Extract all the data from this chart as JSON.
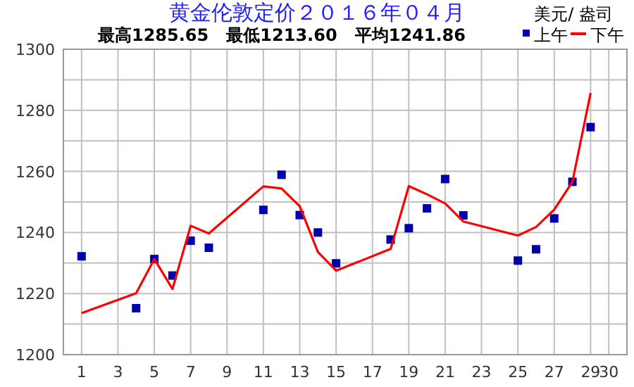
{
  "chart_data": {
    "type": "line",
    "title": "黄金伦敦定价２０１６年０４月",
    "subtitle": "最高1285.65   最低1213.60   平均1241.86",
    "ylabel": "美元/ 盎司",
    "x": [
      1,
      4,
      5,
      6,
      7,
      8,
      11,
      12,
      13,
      14,
      15,
      18,
      19,
      20,
      21,
      22,
      25,
      26,
      27,
      28,
      29
    ],
    "series": [
      {
        "name": "上午",
        "type": "scatter",
        "marker": "square",
        "color": "#0000aa",
        "values": [
          1232.2,
          1215.2,
          1231.3,
          1225.9,
          1237.3,
          1235.0,
          1247.4,
          1258.9,
          1245.7,
          1240.0,
          1229.9,
          1237.7,
          1241.4,
          1247.9,
          1257.5,
          1245.6,
          1230.8,
          1234.5,
          1244.6,
          1256.6,
          1274.5
        ]
      },
      {
        "name": "下午",
        "color": "#ff0000",
        "values": [
          1213.6,
          1220.1,
          1231.3,
          1221.5,
          1242.2,
          1239.7,
          1255.1,
          1254.4,
          1248.6,
          1233.6,
          1227.5,
          1234.6,
          1255.2,
          1252.5,
          1249.5,
          1243.6,
          1239.0,
          1241.8,
          1247.5,
          1256.6,
          1285.7
        ]
      }
    ],
    "xlim": [
      0,
      31
    ],
    "xticks": [
      1,
      3,
      5,
      7,
      9,
      11,
      13,
      15,
      17,
      19,
      21,
      23,
      25,
      27,
      29,
      30
    ],
    "ylim": [
      1200,
      1300
    ],
    "yticks": [
      1200,
      1220,
      1240,
      1260,
      1280,
      1300
    ],
    "grid": true,
    "legend": "top right"
  }
}
